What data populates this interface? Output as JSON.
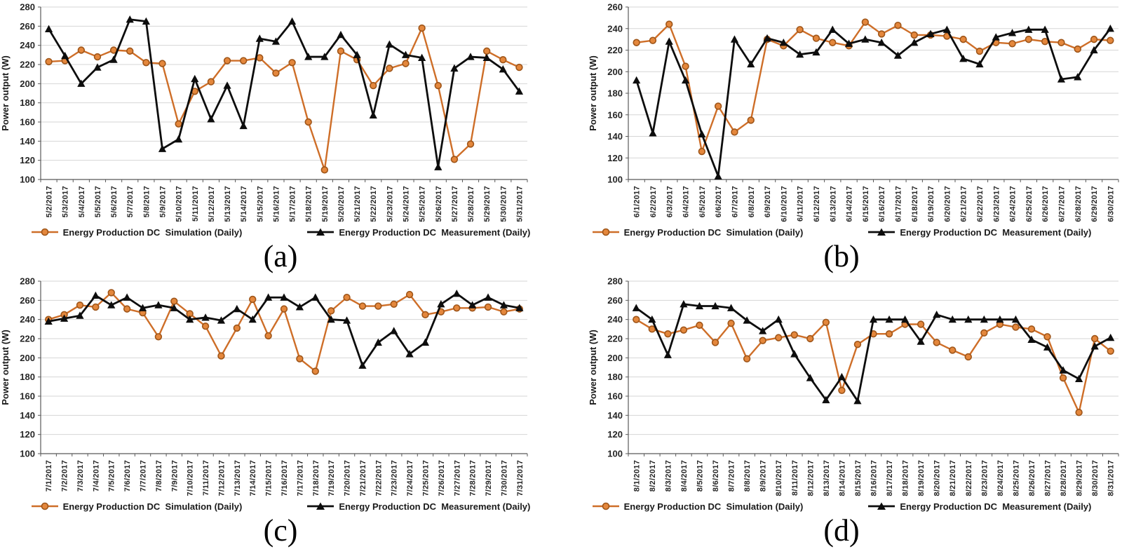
{
  "ylabel": "Power output (W)",
  "legend": {
    "simulation": "Energy Production DC  Simulation (Daily)",
    "measurement": "Energy Production DC  Measurement (Daily)"
  },
  "colors": {
    "grid": "#d6d6d6",
    "axis": "#595959",
    "tick_label": "#262626",
    "simulation_line": "#ce6e28",
    "simulation_fill": "#e4873c",
    "simulation_edge": "#9e5519",
    "measurement": "#0d0d0d",
    "background": "#ffffff"
  },
  "chart_data": [
    {
      "id": "a",
      "caption": "(a)",
      "type": "line",
      "ylabel": "Power output (W)",
      "xlabel": "",
      "ylim": [
        100,
        280
      ],
      "ytick_step": 20,
      "grid": true,
      "legend_position": "bottom",
      "x": [
        "5/2/2017",
        "5/3/2017",
        "5/4/2017",
        "5/5/2017",
        "5/6/2017",
        "5/7/2017",
        "5/8/2017",
        "5/9/2017",
        "5/10/2017",
        "5/11/2017",
        "5/12/2017",
        "5/13/2017",
        "5/14/2017",
        "5/15/2017",
        "5/16/2017",
        "5/17/2017",
        "5/18/2017",
        "5/19/2017",
        "5/20/2017",
        "5/21/2017",
        "5/22/2017",
        "5/23/2017",
        "5/24/2017",
        "5/25/2017",
        "5/26/2017",
        "5/27/2017",
        "5/28/2017",
        "5/29/2017",
        "5/30/2017",
        "5/31/2017"
      ],
      "series": [
        {
          "name": "Energy Production DC  Simulation (Daily)",
          "marker": "circle",
          "values": [
            223,
            224,
            235,
            228,
            235,
            234,
            222,
            221,
            158,
            192,
            202,
            224,
            224,
            227,
            211,
            222,
            160,
            110,
            234,
            225,
            198,
            216,
            221,
            258,
            198,
            121,
            137,
            234,
            225,
            217
          ]
        },
        {
          "name": "Energy Production DC  Measurement (Daily)",
          "marker": "triangle",
          "values": [
            257,
            229,
            200,
            217,
            225,
            267,
            265,
            132,
            142,
            205,
            163,
            198,
            156,
            247,
            244,
            265,
            228,
            228,
            251,
            230,
            167,
            241,
            230,
            227,
            113,
            216,
            228,
            227,
            215,
            192
          ]
        }
      ]
    },
    {
      "id": "b",
      "caption": "(b)",
      "type": "line",
      "ylabel": "Power output (W)",
      "xlabel": "",
      "ylim": [
        100,
        260
      ],
      "ytick_step": 20,
      "grid": true,
      "legend_position": "bottom",
      "x": [
        "6/1/2017",
        "6/2/2017",
        "6/3/2017",
        "6/4/2017",
        "6/5/2017",
        "6/6/2017",
        "6/7/2017",
        "6/8/2017",
        "6/9/2017",
        "6/10/2017",
        "6/11/2017",
        "6/12/2017",
        "6/13/2017",
        "6/14/2017",
        "6/15/2017",
        "6/16/2017",
        "6/17/2017",
        "6/18/2017",
        "6/19/2017",
        "6/20/2017",
        "6/21/2017",
        "6/22/2017",
        "6/23/2017",
        "6/24/2017",
        "6/25/2017",
        "6/26/2017",
        "6/27/2017",
        "6/28/2017",
        "6/29/2017",
        "6/30/2017"
      ],
      "series": [
        {
          "name": "Energy Production DC  Simulation (Daily)",
          "marker": "circle",
          "values": [
            227,
            229,
            244,
            205,
            126,
            168,
            144,
            155,
            230,
            224,
            239,
            231,
            227,
            224,
            246,
            235,
            243,
            234,
            234,
            233,
            230,
            219,
            227,
            226,
            230,
            228,
            227,
            221,
            230,
            229
          ]
        },
        {
          "name": "Energy Production DC  Measurement (Daily)",
          "marker": "triangle",
          "values": [
            192,
            143,
            228,
            192,
            142,
            103,
            230,
            207,
            231,
            227,
            216,
            218,
            239,
            226,
            230,
            227,
            215,
            227,
            235,
            239,
            212,
            207,
            232,
            236,
            239,
            239,
            193,
            195,
            220,
            240
          ]
        }
      ]
    },
    {
      "id": "c",
      "caption": "(c)",
      "type": "line",
      "ylabel": "Power output (W)",
      "xlabel": "",
      "ylim": [
        100,
        280
      ],
      "ytick_step": 20,
      "grid": true,
      "legend_position": "bottom",
      "x": [
        "7/1/2017",
        "7/2/2017",
        "7/3/2017",
        "7/4/2017",
        "7/5/2017",
        "7/6/2017",
        "7/7/2017",
        "7/8/2017",
        "7/9/2017",
        "7/10/2017",
        "7/11/2017",
        "7/12/2017",
        "7/13/2017",
        "7/14/2017",
        "7/15/2017",
        "7/16/2017",
        "7/17/2017",
        "7/18/2017",
        "7/19/2017",
        "7/20/2017",
        "7/21/2017",
        "7/22/2017",
        "7/23/2017",
        "7/24/2017",
        "7/25/2017",
        "7/26/2017",
        "7/27/2017",
        "7/28/2017",
        "7/29/2017",
        "7/30/2017",
        "7/31/2017"
      ],
      "series": [
        {
          "name": "Energy Production DC  Simulation (Daily)",
          "marker": "circle",
          "values": [
            240,
            245,
            255,
            253,
            268,
            251,
            247,
            222,
            259,
            246,
            233,
            202,
            231,
            261,
            223,
            251,
            199,
            186,
            249,
            263,
            254,
            254,
            256,
            266,
            245,
            248,
            252,
            252,
            253,
            248,
            251
          ]
        },
        {
          "name": "Energy Production DC  Measurement (Daily)",
          "marker": "triangle",
          "values": [
            238,
            241,
            244,
            265,
            255,
            263,
            252,
            255,
            252,
            240,
            242,
            239,
            251,
            240,
            263,
            263,
            253,
            263,
            240,
            239,
            192,
            216,
            228,
            204,
            216,
            256,
            267,
            255,
            263,
            255,
            252
          ]
        }
      ]
    },
    {
      "id": "d",
      "caption": "(d)",
      "type": "line",
      "ylabel": "Power output (W)",
      "xlabel": "",
      "ylim": [
        100,
        280
      ],
      "ytick_step": 20,
      "grid": true,
      "legend_position": "bottom",
      "x": [
        "8/1/2017",
        "8/2/2017",
        "8/3/2017",
        "8/4/2017",
        "8/5/2017",
        "8/6/2017",
        "8/7/2017",
        "8/8/2017",
        "8/9/2017",
        "8/10/2017",
        "8/11/2017",
        "8/12/2017",
        "8/13/2017",
        "8/14/2017",
        "8/15/2017",
        "8/16/2017",
        "8/17/2017",
        "8/18/2017",
        "8/19/2017",
        "8/20/2017",
        "8/21/2017",
        "8/22/2017",
        "8/23/2017",
        "8/24/2017",
        "8/25/2017",
        "8/26/2017",
        "8/27/2017",
        "8/28/2017",
        "8/29/2017",
        "8/30/2017",
        "8/31/2017"
      ],
      "series": [
        {
          "name": "Energy Production DC  Simulation (Daily)",
          "marker": "circle",
          "values": [
            240,
            230,
            225,
            229,
            234,
            216,
            236,
            199,
            218,
            221,
            224,
            220,
            237,
            166,
            214,
            225,
            225,
            235,
            235,
            216,
            208,
            201,
            226,
            235,
            232,
            230,
            222,
            179,
            143,
            220,
            207
          ]
        },
        {
          "name": "Energy Production DC  Measurement (Daily)",
          "marker": "triangle",
          "values": [
            252,
            240,
            203,
            256,
            254,
            254,
            252,
            239,
            228,
            240,
            204,
            179,
            156,
            180,
            155,
            240,
            240,
            240,
            217,
            245,
            240,
            240,
            240,
            240,
            240,
            219,
            211,
            187,
            178,
            212,
            221
          ]
        }
      ]
    }
  ]
}
